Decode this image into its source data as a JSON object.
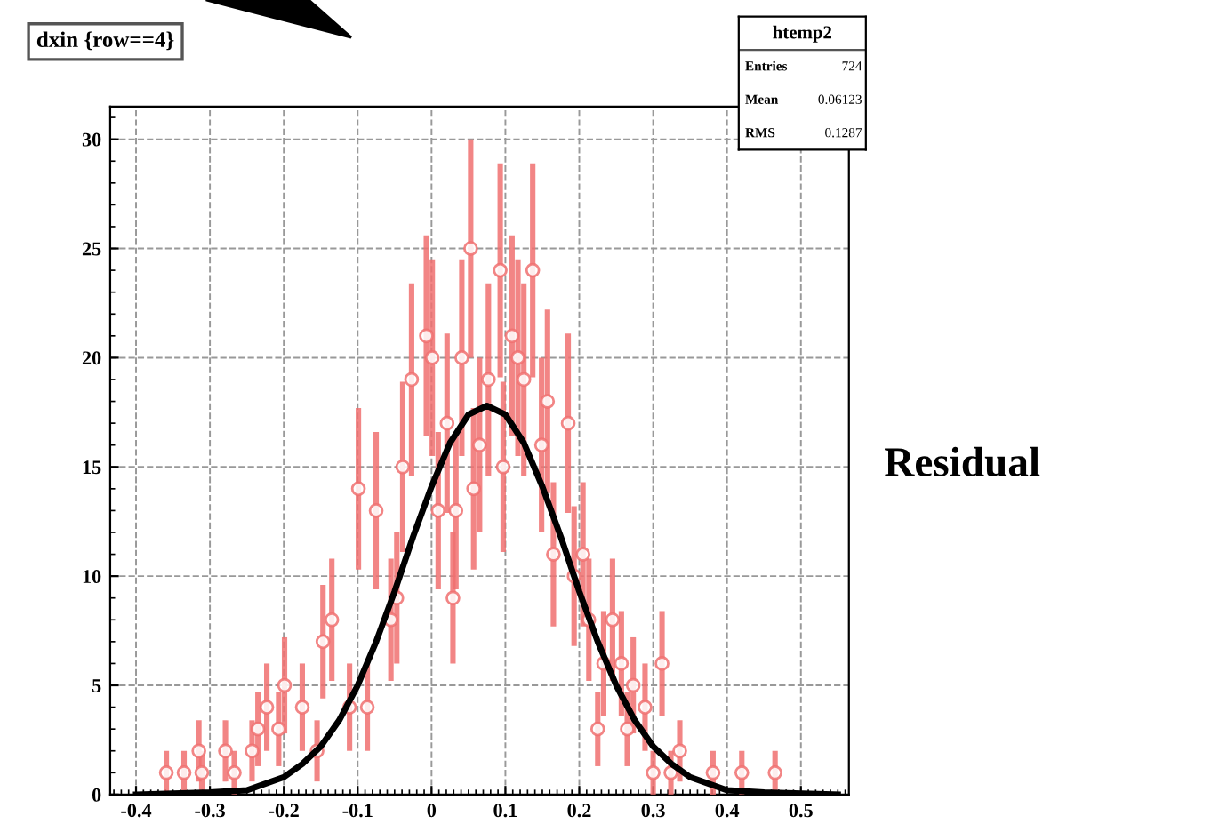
{
  "chart_data": {
    "type": "scatter",
    "title": "dxin {row==4}",
    "annotations": [
      "htemp2",
      "Entries",
      "724",
      "Mean",
      "0.06123",
      "RMS",
      "0.1287",
      "Residual"
    ],
    "xlim": [
      -0.435,
      0.565
    ],
    "xticks": [
      -0.4,
      -0.3,
      -0.2,
      -0.1,
      0,
      0.1,
      0.2,
      0.3,
      0.4,
      0.5
    ],
    "ylim": [
      0,
      31.5
    ],
    "yticks": [
      0,
      5,
      10,
      15,
      20,
      25,
      30
    ],
    "grid": true,
    "marker": "circle",
    "series": [
      {
        "color": "#f07070",
        "x": [
          -0.359,
          -0.335,
          -0.315,
          -0.311,
          -0.279,
          -0.267,
          -0.243,
          -0.235,
          -0.223,
          -0.207,
          -0.199,
          -0.175,
          -0.155,
          -0.147,
          -0.135,
          -0.111,
          -0.099,
          -0.087,
          -0.075,
          -0.055,
          -0.047,
          -0.039,
          -0.027,
          -0.007,
          0.001,
          0.009,
          0.021,
          0.029,
          0.033,
          0.041,
          0.053,
          0.057,
          0.065,
          0.077,
          0.093,
          0.097,
          0.109,
          0.117,
          0.125,
          0.137,
          0.149,
          0.157,
          0.165,
          0.185,
          0.193,
          0.205,
          0.213,
          0.225,
          0.233,
          0.245,
          0.257,
          0.265,
          0.273,
          0.289,
          0.3,
          0.312,
          0.324,
          0.336,
          0.381,
          0.42,
          0.465
        ],
        "values": [
          1,
          1,
          2,
          1,
          2,
          1,
          2,
          3,
          4,
          3,
          5,
          4,
          2,
          7,
          8,
          4,
          14,
          4,
          13,
          8,
          9,
          15,
          19,
          21,
          20,
          13,
          17,
          9,
          13,
          20,
          25,
          14,
          16,
          19,
          24,
          15,
          21,
          20,
          19,
          24,
          16,
          18,
          11,
          17,
          10,
          11,
          8,
          3,
          6,
          8,
          6,
          3,
          5,
          4,
          1,
          6,
          1,
          2,
          1,
          1,
          1
        ],
        "errors": [
          1,
          1,
          1.4,
          1,
          1.4,
          1,
          1.4,
          1.7,
          2,
          1.7,
          2.2,
          2,
          1.4,
          2.6,
          2.8,
          2,
          3.7,
          2,
          3.6,
          2.8,
          3,
          3.9,
          4.4,
          4.6,
          4.5,
          3.6,
          4.1,
          3,
          3.6,
          4.5,
          5,
          3.7,
          4,
          4.4,
          4.9,
          3.9,
          4.6,
          4.5,
          4.4,
          4.9,
          4,
          4.2,
          3.3,
          4.1,
          3.2,
          3.3,
          2.8,
          1.7,
          2.4,
          2.8,
          2.4,
          1.7,
          2.2,
          2,
          1,
          2.4,
          1,
          1.4,
          1,
          1,
          1
        ]
      },
      {
        "type": "line",
        "color": "#000000",
        "marker": "none",
        "x": [
          -0.4,
          -0.3,
          -0.25,
          -0.2,
          -0.175,
          -0.15,
          -0.125,
          -0.1,
          -0.075,
          -0.05,
          -0.025,
          0,
          0.025,
          0.05,
          0.075,
          0.1,
          0.125,
          0.15,
          0.175,
          0.2,
          0.225,
          0.25,
          0.275,
          0.3,
          0.325,
          0.35,
          0.4,
          0.45,
          0.55
        ],
        "values": [
          0,
          0.1,
          0.2,
          0.8,
          1.4,
          2.2,
          3.4,
          5.0,
          7.0,
          9.3,
          11.8,
          14.1,
          16.1,
          17.4,
          17.8,
          17.4,
          16.1,
          14.1,
          11.8,
          9.3,
          7.0,
          5.0,
          3.4,
          2.2,
          1.4,
          0.8,
          0.2,
          0.1,
          0
        ]
      }
    ]
  }
}
